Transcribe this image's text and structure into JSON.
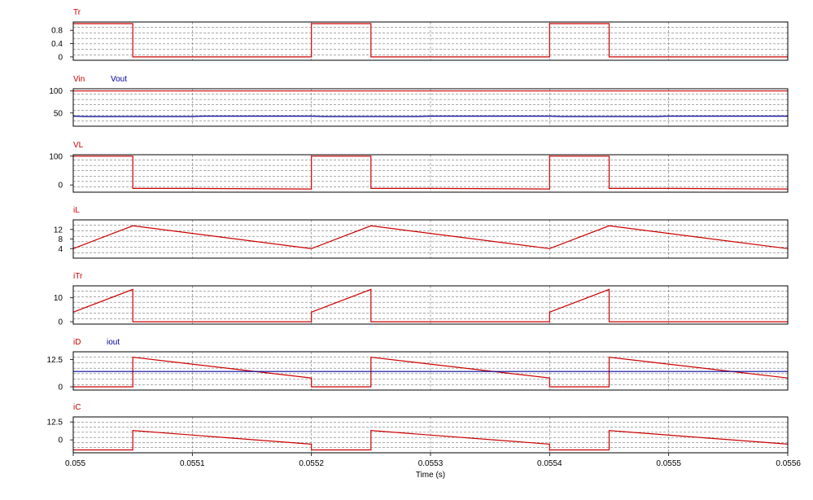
{
  "chart_data": {
    "type": "line",
    "x_range": [
      0.055,
      0.0556
    ],
    "x_ticks": [
      "0.055",
      "0.0551",
      "0.0552",
      "0.0553",
      "0.0554",
      "0.0555",
      "0.0556"
    ],
    "x_tick_values": [
      0.055,
      0.0551,
      0.0552,
      0.0553,
      0.0554,
      0.0555,
      0.0556
    ],
    "xlabel": "Time (s)",
    "grid": true,
    "colors": {
      "red": "#cc0000",
      "blue": "#000099",
      "frame": "#000000",
      "grid": "#777777"
    },
    "panels": [
      {
        "id": "tr",
        "ylim": [
          -0.1,
          1.05
        ],
        "yticks": [
          {
            "label": "0.8",
            "value": 0.8
          },
          {
            "label": "0.4",
            "value": 0.4
          },
          {
            "label": "0",
            "value": 0
          }
        ],
        "series": [
          {
            "name": "Tr",
            "color": "#cc0000",
            "points": [
              [
                0.055,
                1
              ],
              [
                0.05505,
                1
              ],
              [
                0.05505,
                0
              ],
              [
                0.0552,
                0
              ],
              [
                0.0552,
                1
              ],
              [
                0.05525,
                1
              ],
              [
                0.05525,
                0
              ],
              [
                0.0554,
                0
              ],
              [
                0.0554,
                1
              ],
              [
                0.05545,
                1
              ],
              [
                0.05545,
                0
              ],
              [
                0.0556,
                0
              ]
            ]
          }
        ]
      },
      {
        "id": "vin",
        "ylim": [
          20,
          105
        ],
        "yticks": [
          {
            "label": "100",
            "value": 100
          },
          {
            "label": "50",
            "value": 50
          }
        ],
        "series": [
          {
            "name": "Vin",
            "color": "#cc0000",
            "points": [
              [
                0.055,
                100
              ],
              [
                0.0556,
                100
              ]
            ]
          },
          {
            "name": "Vout",
            "color": "#000099",
            "points": [
              [
                0.055,
                43
              ],
              [
                0.05501,
                42
              ],
              [
                0.0551,
                42
              ],
              [
                0.05511,
                43
              ],
              [
                0.0552,
                43
              ],
              [
                0.05521,
                42
              ],
              [
                0.05529,
                42
              ],
              [
                0.0553,
                43
              ],
              [
                0.0554,
                43
              ],
              [
                0.05541,
                42
              ],
              [
                0.05549,
                42
              ],
              [
                0.0555,
                43
              ],
              [
                0.0556,
                43
              ]
            ]
          }
        ]
      },
      {
        "id": "vl",
        "ylim": [
          -25,
          105
        ],
        "yticks": [
          {
            "label": "100",
            "value": 100
          },
          {
            "label": "0",
            "value": 0
          }
        ],
        "series": [
          {
            "name": "VL",
            "color": "#cc0000",
            "points": [
              [
                0.055,
                100
              ],
              [
                0.05505,
                100
              ],
              [
                0.05505,
                -12
              ],
              [
                0.0551,
                -12
              ],
              [
                0.0552,
                -14
              ],
              [
                0.0552,
                100
              ],
              [
                0.05525,
                100
              ],
              [
                0.05525,
                -12
              ],
              [
                0.0553,
                -12
              ],
              [
                0.0554,
                -14
              ],
              [
                0.0554,
                100
              ],
              [
                0.05545,
                100
              ],
              [
                0.05545,
                -12
              ],
              [
                0.0555,
                -12
              ],
              [
                0.0556,
                -14
              ]
            ]
          }
        ]
      },
      {
        "id": "il",
        "ylim": [
          0,
          16
        ],
        "yticks": [
          {
            "label": "12",
            "value": 12
          },
          {
            "label": "8",
            "value": 8
          },
          {
            "label": "4",
            "value": 4
          }
        ],
        "series": [
          {
            "name": "iL",
            "color": "#cc0000",
            "points": [
              [
                0.055,
                4
              ],
              [
                0.05505,
                13.5
              ],
              [
                0.0552,
                4
              ],
              [
                0.05525,
                13.5
              ],
              [
                0.0554,
                4
              ],
              [
                0.05545,
                13.5
              ],
              [
                0.0556,
                4
              ]
            ]
          }
        ]
      },
      {
        "id": "itr",
        "ylim": [
          -1,
          15
        ],
        "yticks": [
          {
            "label": "10",
            "value": 10
          },
          {
            "label": "0",
            "value": 0
          }
        ],
        "series": [
          {
            "name": "iTr",
            "color": "#cc0000",
            "points": [
              [
                0.055,
                4
              ],
              [
                0.05505,
                13.5
              ],
              [
                0.05505,
                0
              ],
              [
                0.0552,
                0
              ],
              [
                0.0552,
                4
              ],
              [
                0.05525,
                13.5
              ],
              [
                0.05525,
                0
              ],
              [
                0.0554,
                0
              ],
              [
                0.0554,
                4
              ],
              [
                0.05545,
                13.5
              ],
              [
                0.05545,
                0
              ],
              [
                0.0556,
                0
              ]
            ]
          }
        ]
      },
      {
        "id": "id",
        "ylim": [
          -1.5,
          16
        ],
        "yticks": [
          {
            "label": "12.5",
            "value": 12.5
          },
          {
            "label": "0",
            "value": 0
          }
        ],
        "series": [
          {
            "name": "iD",
            "color": "#cc0000",
            "points": [
              [
                0.055,
                0
              ],
              [
                0.05505,
                0
              ],
              [
                0.05505,
                13.5
              ],
              [
                0.0552,
                4
              ],
              [
                0.0552,
                0
              ],
              [
                0.05525,
                0
              ],
              [
                0.05525,
                13.5
              ],
              [
                0.0554,
                4
              ],
              [
                0.0554,
                0
              ],
              [
                0.05545,
                0
              ],
              [
                0.05545,
                13.5
              ],
              [
                0.0556,
                4
              ]
            ]
          },
          {
            "name": "iout",
            "color": "#000099",
            "points": [
              [
                0.055,
                7
              ],
              [
                0.0556,
                7
              ]
            ]
          }
        ]
      },
      {
        "id": "ic",
        "ylim": [
          -9,
          16
        ],
        "yticks": [
          {
            "label": "12.5",
            "value": 12.5
          },
          {
            "label": "0",
            "value": 0
          }
        ],
        "series": [
          {
            "name": "iC",
            "color": "#cc0000",
            "points": [
              [
                0.055,
                -7
              ],
              [
                0.05505,
                -7
              ],
              [
                0.05505,
                6.5
              ],
              [
                0.0552,
                -3
              ],
              [
                0.0552,
                -7
              ],
              [
                0.05525,
                -7
              ],
              [
                0.05525,
                6.5
              ],
              [
                0.0554,
                -3
              ],
              [
                0.0554,
                -7
              ],
              [
                0.05545,
                -7
              ],
              [
                0.05545,
                6.5
              ],
              [
                0.0556,
                -3
              ]
            ]
          }
        ]
      }
    ]
  }
}
